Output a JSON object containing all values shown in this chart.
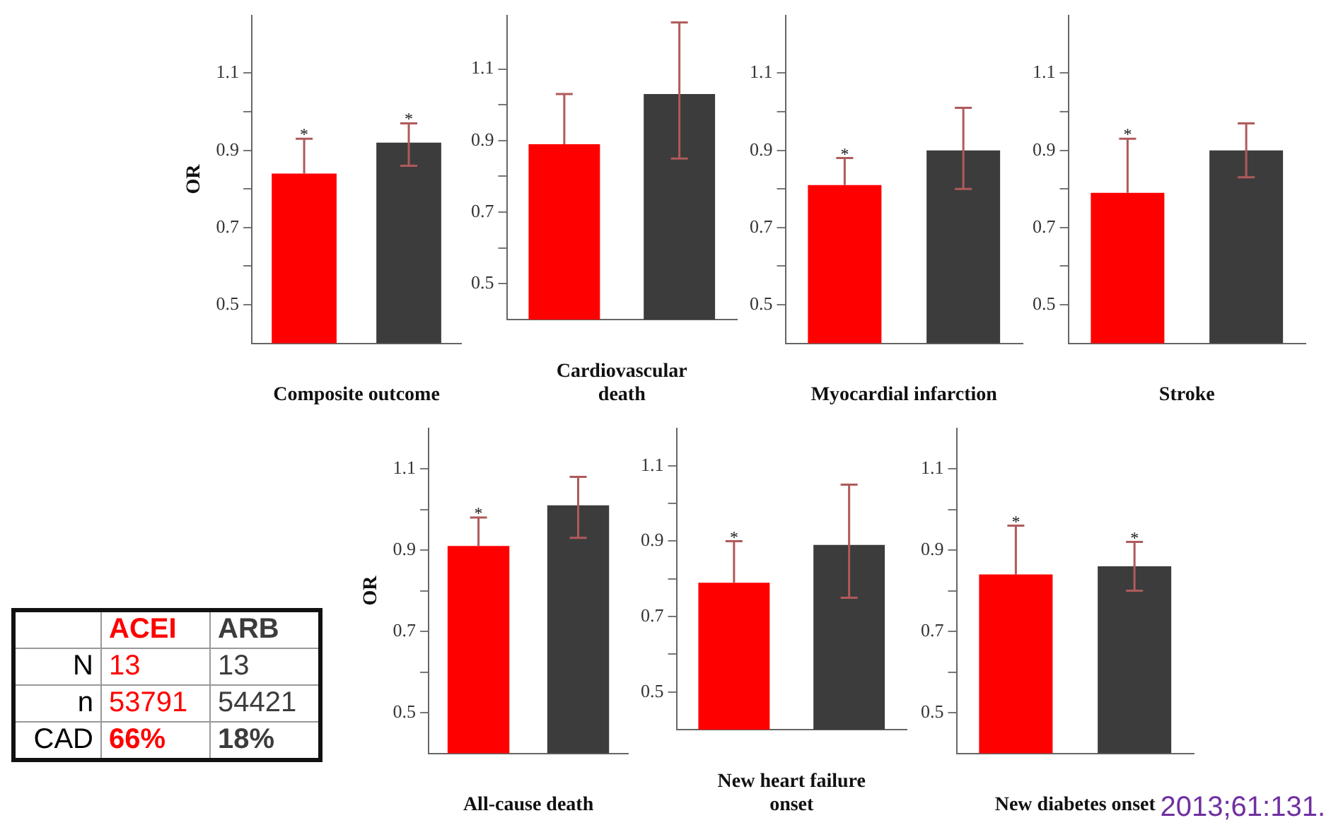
{
  "chart_data": [
    {
      "type": "bar",
      "xlabel": "Composite outcome",
      "ylabel": "OR",
      "categories": [
        null,
        null
      ],
      "values": [
        0.84,
        0.92
      ],
      "colors": [
        "#ff0000",
        "#3c3c3c"
      ],
      "errors": [
        [
          0.84,
          0.93
        ],
        [
          0.86,
          0.97
        ]
      ],
      "value_labels": [
        "*",
        "*"
      ],
      "ylim": [
        0.4,
        1.25
      ],
      "yticks": [
        0.5,
        {
          "value": 0.6,
          "label": null
        },
        0.7,
        {
          "value": 0.8,
          "label": null
        },
        0.9,
        {
          "value": 1.0,
          "label": null
        },
        1.1
      ],
      "grid": false
    },
    {
      "type": "bar",
      "xlabel": "Cardiovascular\ndeath",
      "categories": [
        null,
        null
      ],
      "values": [
        0.89,
        1.03
      ],
      "colors": [
        "#ff0000",
        "#3c3c3c"
      ],
      "errors": [
        [
          0.89,
          1.03
        ],
        [
          0.85,
          1.23
        ]
      ],
      "ylim": [
        0.4,
        1.25
      ],
      "yticks": [
        0.5,
        {
          "value": 0.6,
          "label": null
        },
        0.7,
        {
          "value": 0.8,
          "label": null
        },
        0.9,
        {
          "value": 1.0,
          "label": null
        },
        1.1
      ],
      "grid": false
    },
    {
      "type": "bar",
      "xlabel": "Myocardial infarction",
      "categories": [
        null,
        null
      ],
      "values": [
        0.81,
        0.9
      ],
      "colors": [
        "#ff0000",
        "#3c3c3c"
      ],
      "errors": [
        [
          0.81,
          0.88
        ],
        [
          0.8,
          1.01
        ]
      ],
      "value_labels": [
        "*",
        null
      ],
      "ylim": [
        0.4,
        1.25
      ],
      "yticks": [
        0.5,
        {
          "value": 0.6,
          "label": null
        },
        0.7,
        {
          "value": 0.8,
          "label": null
        },
        0.9,
        {
          "value": 1.0,
          "label": null
        },
        1.1
      ],
      "grid": false
    },
    {
      "type": "bar",
      "xlabel": "Stroke",
      "categories": [
        null,
        null
      ],
      "values": [
        0.79,
        0.9
      ],
      "colors": [
        "#ff0000",
        "#3c3c3c"
      ],
      "errors": [
        [
          0.79,
          0.93
        ],
        [
          0.83,
          0.97
        ]
      ],
      "value_labels": [
        "*",
        null
      ],
      "ylim": [
        0.4,
        1.25
      ],
      "yticks": [
        0.5,
        {
          "value": 0.6,
          "label": null
        },
        0.7,
        {
          "value": 0.8,
          "label": null
        },
        0.9,
        {
          "value": 1.0,
          "label": null
        },
        1.1
      ],
      "grid": false
    },
    {
      "type": "bar",
      "xlabel": "All-cause death",
      "ylabel": "OR",
      "categories": [
        null,
        null
      ],
      "values": [
        0.91,
        1.01
      ],
      "colors": [
        "#ff0000",
        "#3c3c3c"
      ],
      "errors": [
        [
          0.91,
          0.98
        ],
        [
          0.93,
          1.08
        ]
      ],
      "value_labels": [
        "*",
        null
      ],
      "ylim": [
        0.4,
        1.2
      ],
      "yticks": [
        0.5,
        {
          "value": 0.6,
          "label": null
        },
        0.7,
        {
          "value": 0.8,
          "label": null
        },
        0.9,
        {
          "value": 1.0,
          "label": null
        },
        1.1
      ],
      "grid": false
    },
    {
      "type": "bar",
      "xlabel": "New heart failure\nonset",
      "categories": [
        null,
        null
      ],
      "values": [
        0.79,
        0.89
      ],
      "colors": [
        "#ff0000",
        "#3c3c3c"
      ],
      "errors": [
        [
          0.79,
          0.9
        ],
        [
          0.75,
          1.05
        ]
      ],
      "value_labels": [
        "*",
        null
      ],
      "ylim": [
        0.4,
        1.2
      ],
      "yticks": [
        0.5,
        {
          "value": 0.6,
          "label": null
        },
        0.7,
        {
          "value": 0.8,
          "label": null
        },
        0.9,
        {
          "value": 1.0,
          "label": null
        },
        1.1
      ],
      "grid": false
    },
    {
      "type": "bar",
      "xlabel": "New diabetes onset",
      "categories": [
        null,
        null
      ],
      "values": [
        0.84,
        0.86
      ],
      "colors": [
        "#ff0000",
        "#3c3c3c"
      ],
      "errors": [
        [
          0.84,
          0.96
        ],
        [
          0.8,
          0.92
        ]
      ],
      "value_labels": [
        "*",
        "*"
      ],
      "ylim": [
        0.4,
        1.2
      ],
      "yticks": [
        0.5,
        {
          "value": 0.6,
          "label": null
        },
        0.7,
        {
          "value": 0.8,
          "label": null
        },
        0.9,
        {
          "value": 1.0,
          "label": null
        },
        1.1
      ],
      "grid": false
    },
    {
      "type": "other",
      "categories": [
        "N",
        "n",
        "CAD"
      ],
      "series": [
        {
          "name": "ACEI",
          "values": [
            13,
            53791,
            66
          ],
          "value_labels": [
            "13",
            "53791",
            "66%"
          ]
        },
        {
          "name": "ARB",
          "values": [
            13,
            54421,
            18
          ],
          "value_labels": [
            "13",
            "54421",
            "18%"
          ]
        }
      ],
      "annotations": [
        "2013;61:131."
      ]
    }
  ]
}
